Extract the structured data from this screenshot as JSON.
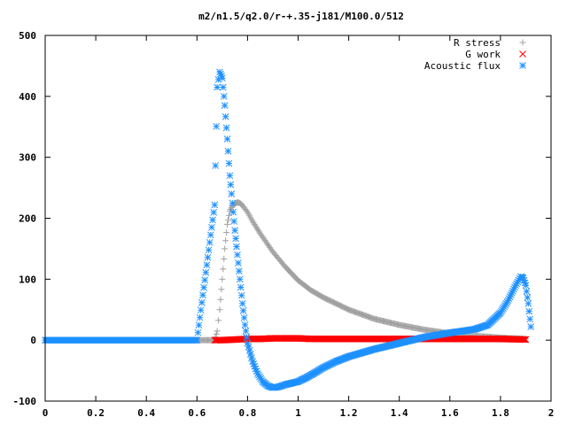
{
  "chart_data": {
    "type": "scatter",
    "title": "m2/n1.5/q2.0/r-+.35-j181/M100.0/512",
    "xlabel": "",
    "ylabel": "",
    "xlim": [
      0,
      2
    ],
    "ylim": [
      -100,
      500
    ],
    "x_ticks": [
      0,
      0.2,
      0.4,
      0.6,
      0.8,
      1,
      1.2,
      1.4,
      1.6,
      1.8,
      2
    ],
    "x_tick_labels": [
      "0",
      "0.2",
      "0.4",
      "0.6",
      "0.8",
      "1",
      "1.2",
      "1.4",
      "1.6",
      "1.8",
      "2"
    ],
    "y_ticks": [
      -100,
      0,
      100,
      200,
      300,
      400,
      500
    ],
    "y_tick_labels": [
      "-100",
      "0",
      "100",
      "200",
      "300",
      "400",
      "500"
    ],
    "grid": false,
    "legend_position": "top-right",
    "series": [
      {
        "name": "R stress",
        "marker": "plus",
        "color": "#a0a0a0",
        "x": [
          0.0,
          0.2,
          0.4,
          0.6,
          0.67,
          0.68,
          0.69,
          0.7,
          0.71,
          0.72,
          0.73,
          0.74,
          0.75,
          0.76,
          0.77,
          0.78,
          0.8,
          0.82,
          0.85,
          0.9,
          0.95,
          1.0,
          1.05,
          1.1,
          1.2,
          1.3,
          1.4,
          1.5,
          1.6,
          1.7,
          1.8,
          1.9
        ],
        "y": [
          0,
          0,
          0,
          0,
          0,
          15,
          50,
          100,
          150,
          190,
          212,
          220,
          224,
          226,
          225,
          221,
          210,
          195,
          175,
          145,
          120,
          98,
          82,
          70,
          50,
          35,
          25,
          17,
          11,
          7,
          4,
          2
        ]
      },
      {
        "name": "G work",
        "marker": "cross",
        "color": "#ff0000",
        "x": [
          0.67,
          0.7,
          0.75,
          0.8,
          0.85,
          0.9,
          0.95,
          1.0,
          1.05,
          1.1,
          1.2,
          1.3,
          1.4,
          1.5,
          1.6,
          1.7,
          1.8,
          1.9
        ],
        "y": [
          0,
          0,
          1,
          2,
          2,
          3,
          3,
          3,
          2,
          2,
          2,
          2,
          2,
          2,
          2,
          2,
          2,
          1
        ]
      },
      {
        "name": "Acoustic flux",
        "marker": "star",
        "color": "#1e90ff",
        "x": [
          0.0,
          0.2,
          0.4,
          0.6,
          0.67,
          0.68,
          0.69,
          0.7,
          0.71,
          0.72,
          0.73,
          0.74,
          0.75,
          0.76,
          0.77,
          0.78,
          0.79,
          0.8,
          0.82,
          0.84,
          0.86,
          0.88,
          0.9,
          0.92,
          0.95,
          0.98,
          1.0,
          1.03,
          1.06,
          1.1,
          1.15,
          1.2,
          1.3,
          1.4,
          1.5,
          1.6,
          1.7,
          1.75,
          1.8,
          1.83,
          1.86,
          1.88,
          1.89,
          1.9,
          1.91,
          1.92
        ],
        "y": [
          0,
          0,
          0,
          0,
          222,
          415,
          440,
          430,
          385,
          330,
          270,
          225,
          180,
          140,
          100,
          60,
          25,
          -5,
          -35,
          -55,
          -68,
          -75,
          -78,
          -77,
          -73,
          -70,
          -68,
          -62,
          -55,
          -45,
          -35,
          -27,
          -15,
          -5,
          5,
          12,
          18,
          25,
          45,
          65,
          90,
          104,
          102,
          90,
          60,
          22
        ]
      }
    ]
  }
}
